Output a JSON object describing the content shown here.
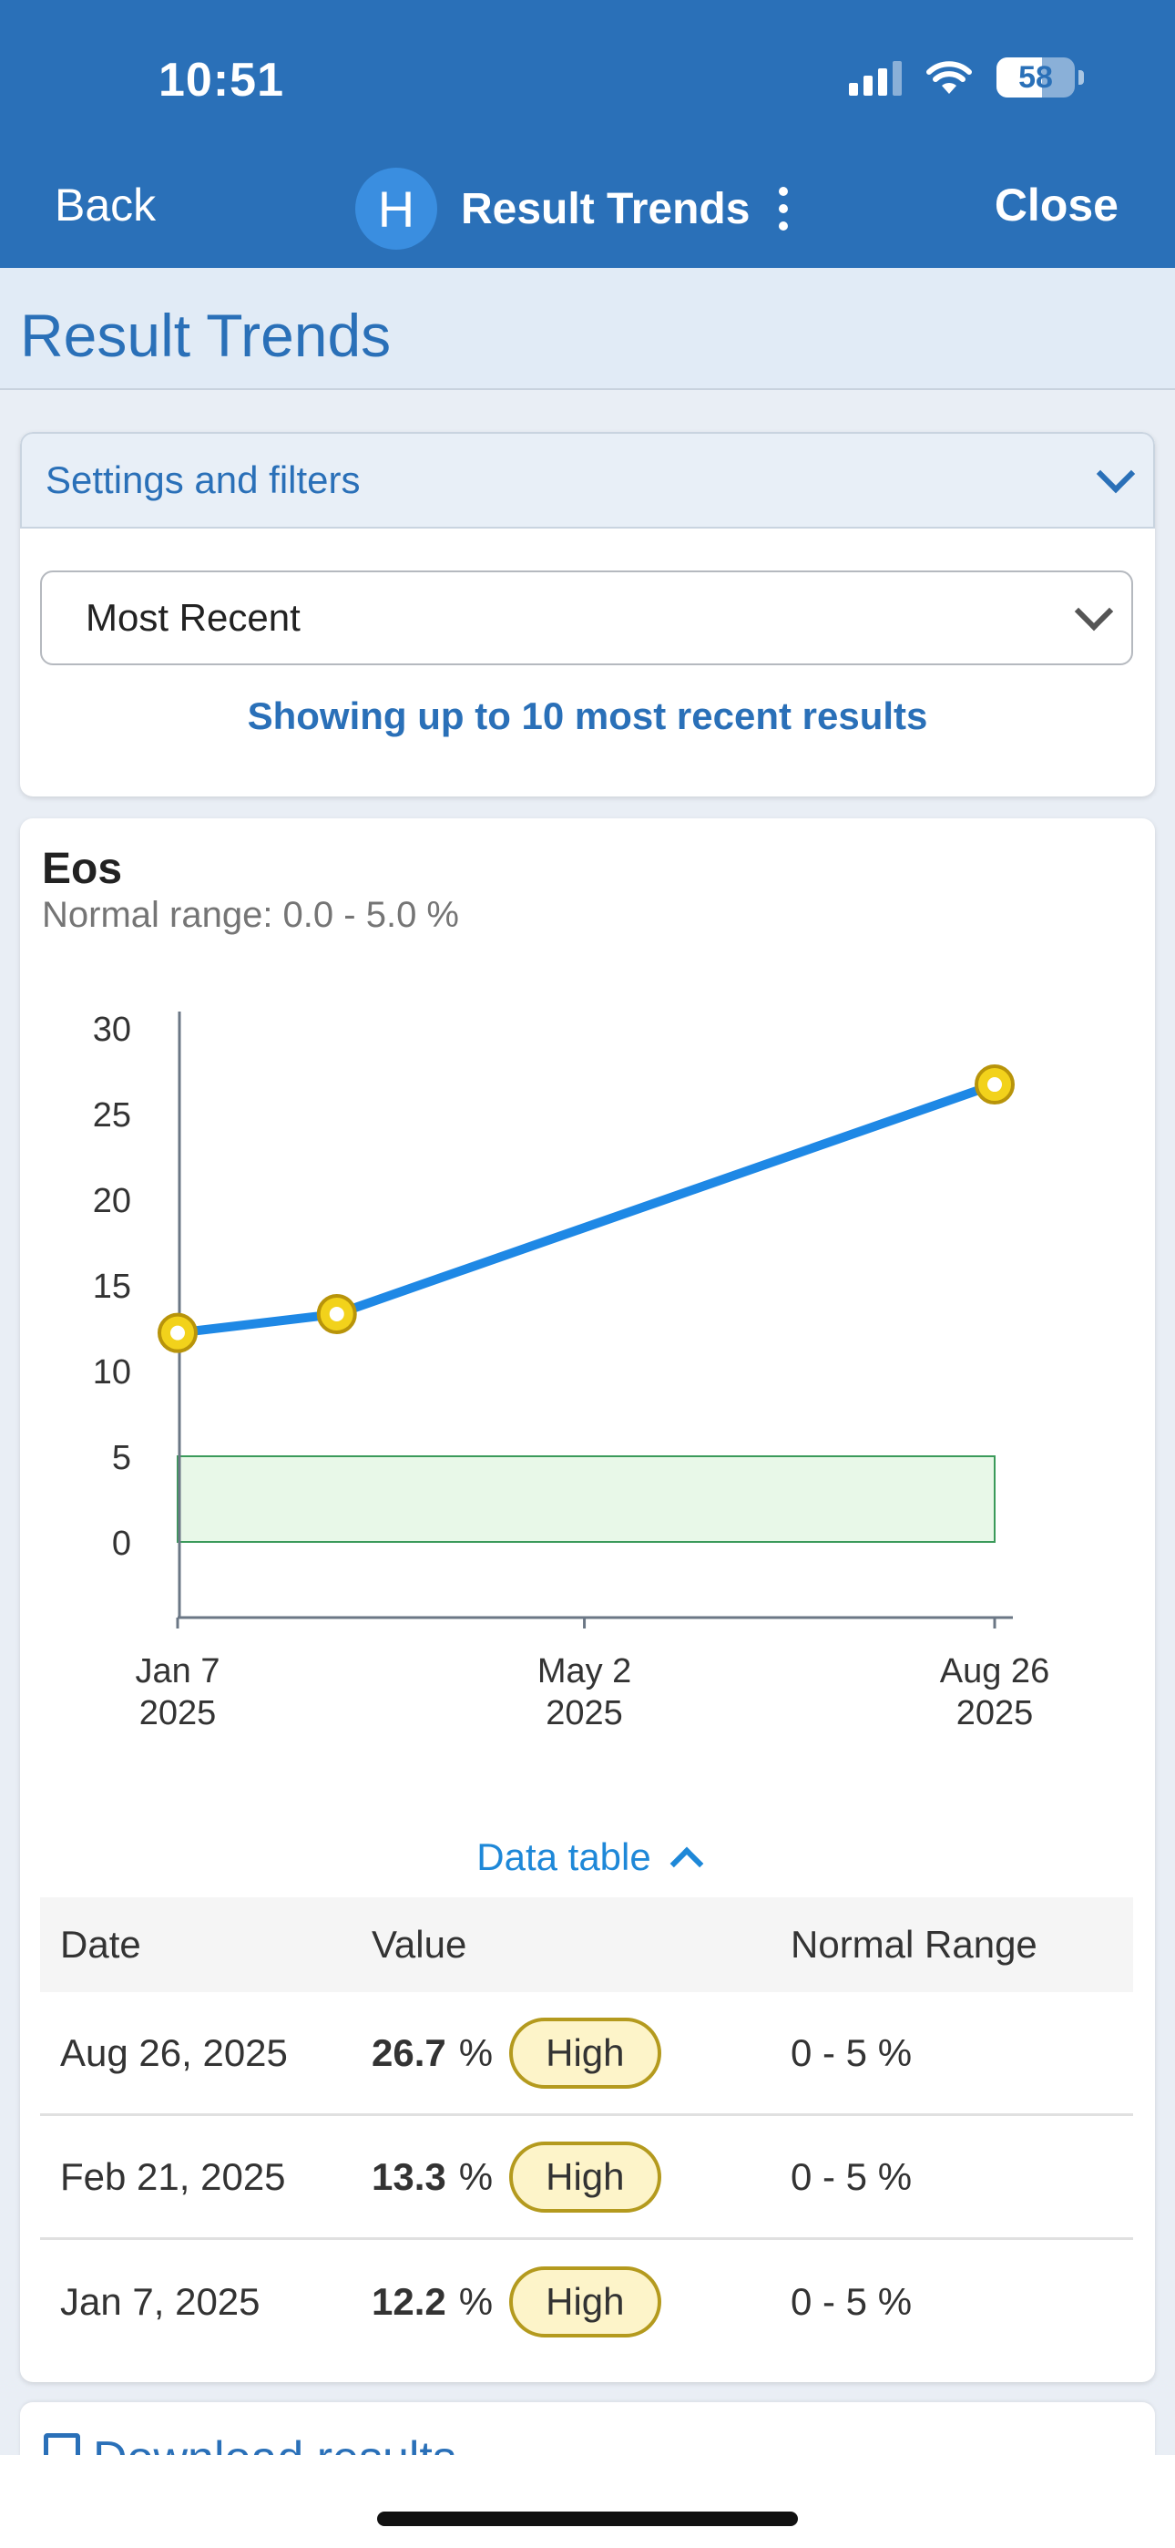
{
  "status_bar": {
    "time": "10:51",
    "battery": "58"
  },
  "nav": {
    "back": "Back",
    "avatar_letter": "H",
    "title": "Result Trends",
    "close": "Close"
  },
  "page": {
    "title": "Result Trends"
  },
  "settings": {
    "header": "Settings and filters",
    "select_value": "Most Recent",
    "showing_text": "Showing up to 10 most recent results"
  },
  "test": {
    "name": "Eos",
    "normal_range": "Normal range: 0.0 - 5.0 %"
  },
  "chart_data": {
    "type": "line",
    "title": "Eos",
    "xlabel": "",
    "ylabel": "",
    "ylim": [
      -5,
      30
    ],
    "yticks": [
      30,
      25,
      20,
      15,
      10,
      5,
      0
    ],
    "x_start": "2025-01-07",
    "x_end": "2025-08-26",
    "xticks": [
      {
        "date": "2025-01-07",
        "line1": "Jan 7",
        "line2": "2025"
      },
      {
        "date": "2025-05-02",
        "line1": "May 2",
        "line2": "2025"
      },
      {
        "date": "2025-08-26",
        "line1": "Aug 26",
        "line2": "2025"
      }
    ],
    "normal_band": [
      0,
      5
    ],
    "series": [
      {
        "values": [
          {
            "date": "2025-01-07",
            "value": 12.2
          },
          {
            "date": "2025-02-21",
            "value": 13.3
          },
          {
            "date": "2025-08-26",
            "value": 26.7
          }
        ]
      }
    ],
    "colors": {
      "line": "#1e88e5",
      "point_fill": "#f2d21b",
      "point_stroke": "#b8940a",
      "band_fill": "#e8f8e8",
      "band_stroke": "#3a9a5a"
    }
  },
  "data_table": {
    "toggle_label": "Data table",
    "headers": {
      "date": "Date",
      "value": "Value",
      "range": "Normal Range"
    },
    "rows": [
      {
        "date": "Aug 26, 2025",
        "value": "26.7",
        "unit": "%",
        "flag": "High",
        "range": "0 - 5 %"
      },
      {
        "date": "Feb 21, 2025",
        "value": "13.3",
        "unit": "%",
        "flag": "High",
        "range": "0 - 5 %"
      },
      {
        "date": "Jan 7, 2025",
        "value": "12.2",
        "unit": "%",
        "flag": "High",
        "range": "0 - 5 %"
      }
    ]
  },
  "download": {
    "label": "Download results"
  }
}
